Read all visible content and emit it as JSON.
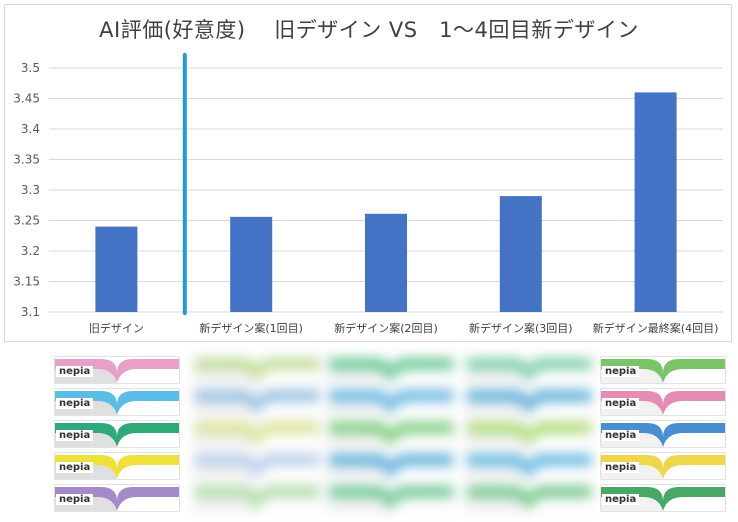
{
  "chart_data": {
    "type": "bar",
    "title": "AI評価(好意度)　 旧デザイン VS　1～4回目新デザイン",
    "categories": [
      "旧デザイン",
      "新デザイン案(1回目)",
      "新デザイン案(2回目)",
      "新デザイン案(3回目)",
      "新デザイン最終案(4回目)"
    ],
    "values": [
      3.24,
      3.256,
      3.261,
      3.29,
      3.46
    ],
    "ylim": [
      3.1,
      3.5
    ],
    "yticks": [
      "3.1",
      "3.15",
      "3.2",
      "3.25",
      "3.3",
      "3.35",
      "3.4",
      "3.45",
      "3.5"
    ],
    "grid": true,
    "bar_color": "#4472c4",
    "divider_color": "#1f9bd7"
  },
  "packages": {
    "brand": "nepia",
    "old_design_colors": [
      "#e8a0c8",
      "#5bbde6",
      "#2fa87a",
      "#ede13a",
      "#a58ac8"
    ],
    "draft_colors": [
      [
        "#b9d98a",
        "#8ab7e0",
        "#d6e08a",
        "#b0c8ea",
        "#a8d8a0"
      ],
      [
        "#58c18a",
        "#58aee0",
        "#6fc86f",
        "#4da6d8",
        "#5cc08a"
      ],
      [
        "#6ec8a0",
        "#4aa6d6",
        "#a6d86a",
        "#52b0e0",
        "#64c07e"
      ]
    ],
    "final_colors": [
      "#7cc46a",
      "#e58cb4",
      "#4a8ed2",
      "#f0d64a",
      "#48a868"
    ]
  }
}
